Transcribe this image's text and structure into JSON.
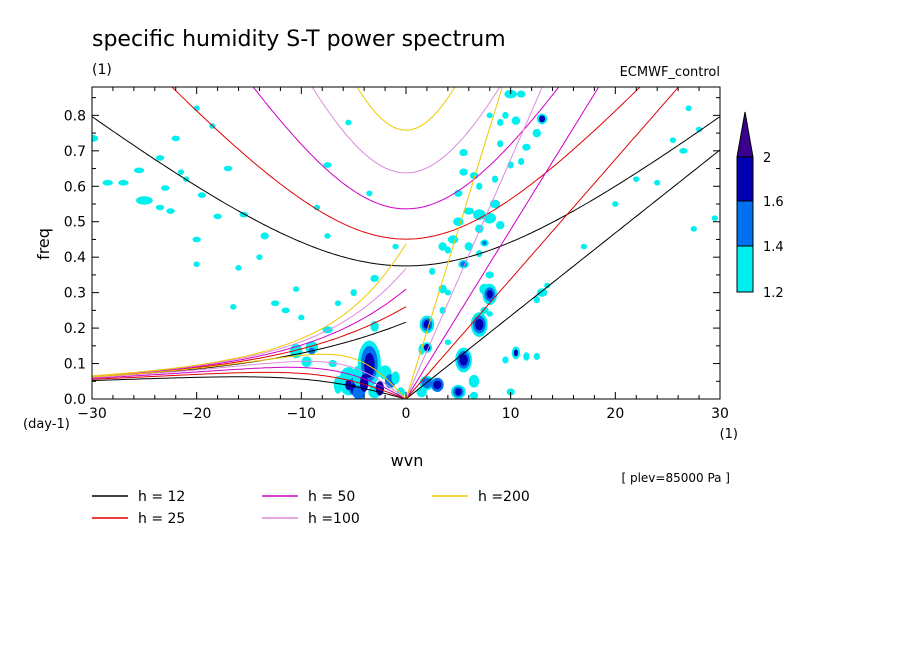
{
  "chart_data": {
    "type": "heatmap",
    "title": "specific humidity S-T power spectrum",
    "unit_left": "(1)",
    "subtitle_right": "ECMWF_control",
    "xlabel": "wvn",
    "ylabel": "freq",
    "x_unit": "(1)",
    "y_unit": "(day-1)",
    "xlim": [
      -30,
      30
    ],
    "ylim": [
      0,
      0.88
    ],
    "x_ticks": [
      -30,
      -20,
      -10,
      0,
      10,
      20,
      30
    ],
    "y_ticks": [
      0.0,
      0.1,
      0.2,
      0.3,
      0.4,
      0.5,
      0.6,
      0.7,
      0.8
    ],
    "colorbar": {
      "levels": [
        1.2,
        1.4,
        1.6,
        2
      ],
      "level_labels": [
        "1.2",
        "1.4",
        "1.6",
        "2"
      ],
      "colors": [
        "#00f0f0",
        "#0070f0",
        "#0000b0",
        "#3c0090"
      ]
    },
    "annotation": "[ plev=85000 Pa ]",
    "dispersion_curves": [
      {
        "name": "h = 12",
        "h": 12,
        "color": "#000000"
      },
      {
        "name": "h = 25",
        "h": 25,
        "color": "#e00000"
      },
      {
        "name": "h = 50",
        "h": 50,
        "color": "#d000c8"
      },
      {
        "name": "h =100",
        "h": 100,
        "color": "#dc8cdc"
      },
      {
        "name": "h =200",
        "h": 200,
        "color": "#f0c800"
      }
    ],
    "blobs": [
      [
        -30,
        0.735,
        0.6,
        0.01,
        1
      ],
      [
        -28.5,
        0.61,
        0.5,
        0.008,
        1
      ],
      [
        -27,
        0.61,
        0.5,
        0.008,
        1
      ],
      [
        -25.5,
        0.645,
        0.5,
        0.008,
        1
      ],
      [
        -25,
        0.56,
        0.8,
        0.012,
        1
      ],
      [
        -23.5,
        0.68,
        0.4,
        0.008,
        1
      ],
      [
        -23,
        0.595,
        0.4,
        0.008,
        1
      ],
      [
        -22,
        0.735,
        0.4,
        0.008,
        1
      ],
      [
        -21,
        0.62,
        0.3,
        0.008,
        1
      ],
      [
        -22.5,
        0.53,
        0.4,
        0.008,
        1
      ],
      [
        -23.5,
        0.54,
        0.4,
        0.008,
        1
      ],
      [
        -20,
        0.45,
        0.4,
        0.008,
        1
      ],
      [
        -19.5,
        0.575,
        0.4,
        0.008,
        1
      ],
      [
        -18,
        0.515,
        0.4,
        0.008,
        1
      ],
      [
        -20,
        0.38,
        0.3,
        0.008,
        1
      ],
      [
        -20,
        0.82,
        0.3,
        0.008,
        1
      ],
      [
        -21.5,
        0.64,
        0.3,
        0.008,
        1
      ],
      [
        -18.5,
        0.77,
        0.3,
        0.008,
        1
      ],
      [
        -17,
        0.65,
        0.4,
        0.008,
        1
      ],
      [
        -15.5,
        0.52,
        0.4,
        0.008,
        1
      ],
      [
        -13.5,
        0.46,
        0.4,
        0.01,
        1
      ],
      [
        -12.5,
        0.27,
        0.4,
        0.008,
        1
      ],
      [
        -11.5,
        0.25,
        0.4,
        0.008,
        1
      ],
      [
        -10,
        0.23,
        0.3,
        0.008,
        1
      ],
      [
        -10.5,
        0.31,
        0.3,
        0.008,
        1
      ],
      [
        -8.5,
        0.54,
        0.3,
        0.008,
        1
      ],
      [
        -7.5,
        0.46,
        0.3,
        0.008,
        1
      ],
      [
        -14,
        0.4,
        0.3,
        0.008,
        1
      ],
      [
        -16,
        0.37,
        0.3,
        0.008,
        1
      ],
      [
        -16.5,
        0.26,
        0.3,
        0.008,
        1
      ],
      [
        -10.5,
        0.135,
        0.6,
        0.02,
        1
      ],
      [
        -9.5,
        0.105,
        0.5,
        0.015,
        1
      ],
      [
        -9,
        0.145,
        0.6,
        0.018,
        1
      ],
      [
        -9,
        0.135,
        0.3,
        0.01,
        2
      ],
      [
        -7.5,
        0.195,
        0.5,
        0.01,
        1
      ],
      [
        -6.5,
        0.27,
        0.3,
        0.008,
        1
      ],
      [
        -7,
        0.1,
        0.4,
        0.01,
        1
      ],
      [
        -5.5,
        0.05,
        0.9,
        0.04,
        1
      ],
      [
        -5,
        0.035,
        0.5,
        0.025,
        2
      ],
      [
        -5,
        0.03,
        0.3,
        0.015,
        3
      ],
      [
        -4.5,
        0.065,
        0.6,
        0.03,
        1
      ],
      [
        -3.5,
        0.1,
        1.1,
        0.065,
        1
      ],
      [
        -3.5,
        0.1,
        0.8,
        0.05,
        2
      ],
      [
        -3.5,
        0.095,
        0.5,
        0.035,
        3
      ],
      [
        -4.5,
        0.018,
        0.6,
        0.02,
        2
      ],
      [
        -3,
        0.02,
        0.6,
        0.018,
        1
      ],
      [
        -2,
        0.075,
        0.6,
        0.02,
        1
      ],
      [
        -1.5,
        0.05,
        0.5,
        0.02,
        2
      ],
      [
        -1,
        0.06,
        0.4,
        0.018,
        1
      ],
      [
        -0.5,
        0.018,
        0.4,
        0.015,
        1
      ],
      [
        -3,
        0.205,
        0.4,
        0.015,
        1
      ],
      [
        -4,
        0.045,
        0.4,
        0.025,
        3
      ],
      [
        -5.5,
        0.04,
        0.3,
        0.015,
        3
      ],
      [
        -2.5,
        0.03,
        0.4,
        0.02,
        3
      ],
      [
        -6.5,
        0.04,
        0.4,
        0.025,
        1
      ],
      [
        -5,
        0.3,
        0.3,
        0.01,
        1
      ],
      [
        -3,
        0.34,
        0.4,
        0.01,
        1
      ],
      [
        -7.5,
        0.66,
        0.4,
        0.008,
        1
      ],
      [
        -5.5,
        0.78,
        0.3,
        0.008,
        1
      ],
      [
        -3.5,
        0.58,
        0.3,
        0.008,
        1
      ],
      [
        -1,
        0.43,
        0.3,
        0.008,
        1
      ],
      [
        1.5,
        0.02,
        0.5,
        0.015,
        1
      ],
      [
        2,
        0.045,
        0.7,
        0.02,
        1
      ],
      [
        2,
        0.045,
        0.5,
        0.015,
        2
      ],
      [
        3,
        0.04,
        0.6,
        0.02,
        2
      ],
      [
        3,
        0.04,
        0.4,
        0.012,
        3
      ],
      [
        1.5,
        0.14,
        0.3,
        0.015,
        1
      ],
      [
        2,
        0.21,
        0.7,
        0.025,
        1
      ],
      [
        2,
        0.21,
        0.5,
        0.018,
        2
      ],
      [
        2,
        0.21,
        0.3,
        0.012,
        3
      ],
      [
        2,
        0.145,
        0.5,
        0.015,
        1
      ],
      [
        2,
        0.145,
        0.3,
        0.01,
        3
      ],
      [
        3.5,
        0.31,
        0.4,
        0.012,
        1
      ],
      [
        3.5,
        0.25,
        0.3,
        0.01,
        1
      ],
      [
        2.5,
        0.36,
        0.3,
        0.01,
        1
      ],
      [
        4,
        0.42,
        0.3,
        0.01,
        1
      ],
      [
        3.5,
        0.43,
        0.4,
        0.012,
        1
      ],
      [
        4.5,
        0.45,
        0.5,
        0.012,
        1
      ],
      [
        5,
        0.5,
        0.5,
        0.012,
        1
      ],
      [
        6,
        0.53,
        0.5,
        0.01,
        1
      ],
      [
        5,
        0.58,
        0.4,
        0.01,
        1
      ],
      [
        5.5,
        0.64,
        0.4,
        0.01,
        1
      ],
      [
        5.5,
        0.695,
        0.4,
        0.01,
        1
      ],
      [
        6.5,
        0.63,
        0.4,
        0.01,
        1
      ],
      [
        5.5,
        0.38,
        0.5,
        0.012,
        1
      ],
      [
        5.5,
        0.38,
        0.3,
        0.008,
        2
      ],
      [
        6,
        0.43,
        0.4,
        0.012,
        1
      ],
      [
        7,
        0.48,
        0.4,
        0.012,
        1
      ],
      [
        7,
        0.52,
        0.6,
        0.015,
        1
      ],
      [
        8,
        0.51,
        0.6,
        0.015,
        1
      ],
      [
        8.5,
        0.55,
        0.5,
        0.012,
        1
      ],
      [
        9,
        0.49,
        0.4,
        0.012,
        1
      ],
      [
        7.5,
        0.44,
        0.4,
        0.01,
        1
      ],
      [
        7.5,
        0.44,
        0.2,
        0.006,
        2
      ],
      [
        7,
        0.41,
        0.3,
        0.01,
        1
      ],
      [
        7,
        0.6,
        0.3,
        0.01,
        1
      ],
      [
        8.5,
        0.62,
        0.3,
        0.01,
        1
      ],
      [
        9,
        0.72,
        0.3,
        0.01,
        1
      ],
      [
        10,
        0.66,
        0.3,
        0.01,
        1
      ],
      [
        11,
        0.67,
        0.3,
        0.01,
        1
      ],
      [
        11.5,
        0.71,
        0.4,
        0.01,
        1
      ],
      [
        10.5,
        0.785,
        0.4,
        0.012,
        1
      ],
      [
        10,
        0.86,
        0.6,
        0.012,
        1
      ],
      [
        11,
        0.86,
        0.4,
        0.01,
        1
      ],
      [
        9.5,
        0.8,
        0.3,
        0.01,
        1
      ],
      [
        8,
        0.8,
        0.3,
        0.008,
        1
      ],
      [
        9,
        0.78,
        0.3,
        0.01,
        1
      ],
      [
        13,
        0.79,
        0.5,
        0.015,
        1
      ],
      [
        13,
        0.79,
        0.3,
        0.01,
        3
      ],
      [
        12.5,
        0.75,
        0.4,
        0.012,
        1
      ],
      [
        8,
        0.35,
        0.4,
        0.01,
        1
      ],
      [
        7.5,
        0.31,
        0.5,
        0.015,
        1
      ],
      [
        8,
        0.295,
        0.7,
        0.03,
        1
      ],
      [
        8,
        0.295,
        0.5,
        0.02,
        2
      ],
      [
        8,
        0.295,
        0.3,
        0.012,
        3
      ],
      [
        7.5,
        0.25,
        0.4,
        0.01,
        1
      ],
      [
        7,
        0.21,
        0.8,
        0.035,
        1
      ],
      [
        7,
        0.21,
        0.6,
        0.025,
        2
      ],
      [
        7,
        0.21,
        0.4,
        0.016,
        3
      ],
      [
        5.5,
        0.11,
        0.8,
        0.035,
        1
      ],
      [
        5.5,
        0.11,
        0.6,
        0.025,
        2
      ],
      [
        5.5,
        0.11,
        0.4,
        0.016,
        3
      ],
      [
        6.5,
        0.05,
        0.5,
        0.018,
        1
      ],
      [
        5,
        0.02,
        0.7,
        0.02,
        1
      ],
      [
        5,
        0.02,
        0.5,
        0.015,
        2
      ],
      [
        5,
        0.02,
        0.3,
        0.01,
        3
      ],
      [
        6.5,
        0.01,
        0.4,
        0.01,
        1
      ],
      [
        8,
        0.24,
        0.3,
        0.008,
        1
      ],
      [
        10.5,
        0.13,
        0.4,
        0.018,
        1
      ],
      [
        10.5,
        0.13,
        0.2,
        0.01,
        3
      ],
      [
        11.5,
        0.12,
        0.3,
        0.012,
        1
      ],
      [
        10,
        0.02,
        0.4,
        0.01,
        1
      ],
      [
        12.5,
        0.12,
        0.3,
        0.01,
        1
      ],
      [
        13,
        0.3,
        0.5,
        0.012,
        1
      ],
      [
        12.5,
        0.28,
        0.3,
        0.01,
        1
      ],
      [
        13.5,
        0.32,
        0.3,
        0.008,
        1
      ],
      [
        17,
        0.43,
        0.3,
        0.008,
        1
      ],
      [
        20,
        0.55,
        0.3,
        0.008,
        1
      ],
      [
        22,
        0.62,
        0.3,
        0.008,
        1
      ],
      [
        26.5,
        0.7,
        0.4,
        0.008,
        1
      ],
      [
        28,
        0.76,
        0.3,
        0.008,
        1
      ],
      [
        27,
        0.82,
        0.3,
        0.008,
        1
      ],
      [
        25.5,
        0.73,
        0.3,
        0.008,
        1
      ],
      [
        24,
        0.61,
        0.3,
        0.008,
        1
      ],
      [
        27.5,
        0.48,
        0.3,
        0.008,
        1
      ],
      [
        29.5,
        0.51,
        0.3,
        0.008,
        1
      ],
      [
        9.5,
        0.11,
        0.3,
        0.01,
        1
      ],
      [
        4,
        0.3,
        0.3,
        0.008,
        1
      ],
      [
        4,
        0.16,
        0.3,
        0.008,
        1
      ]
    ]
  }
}
